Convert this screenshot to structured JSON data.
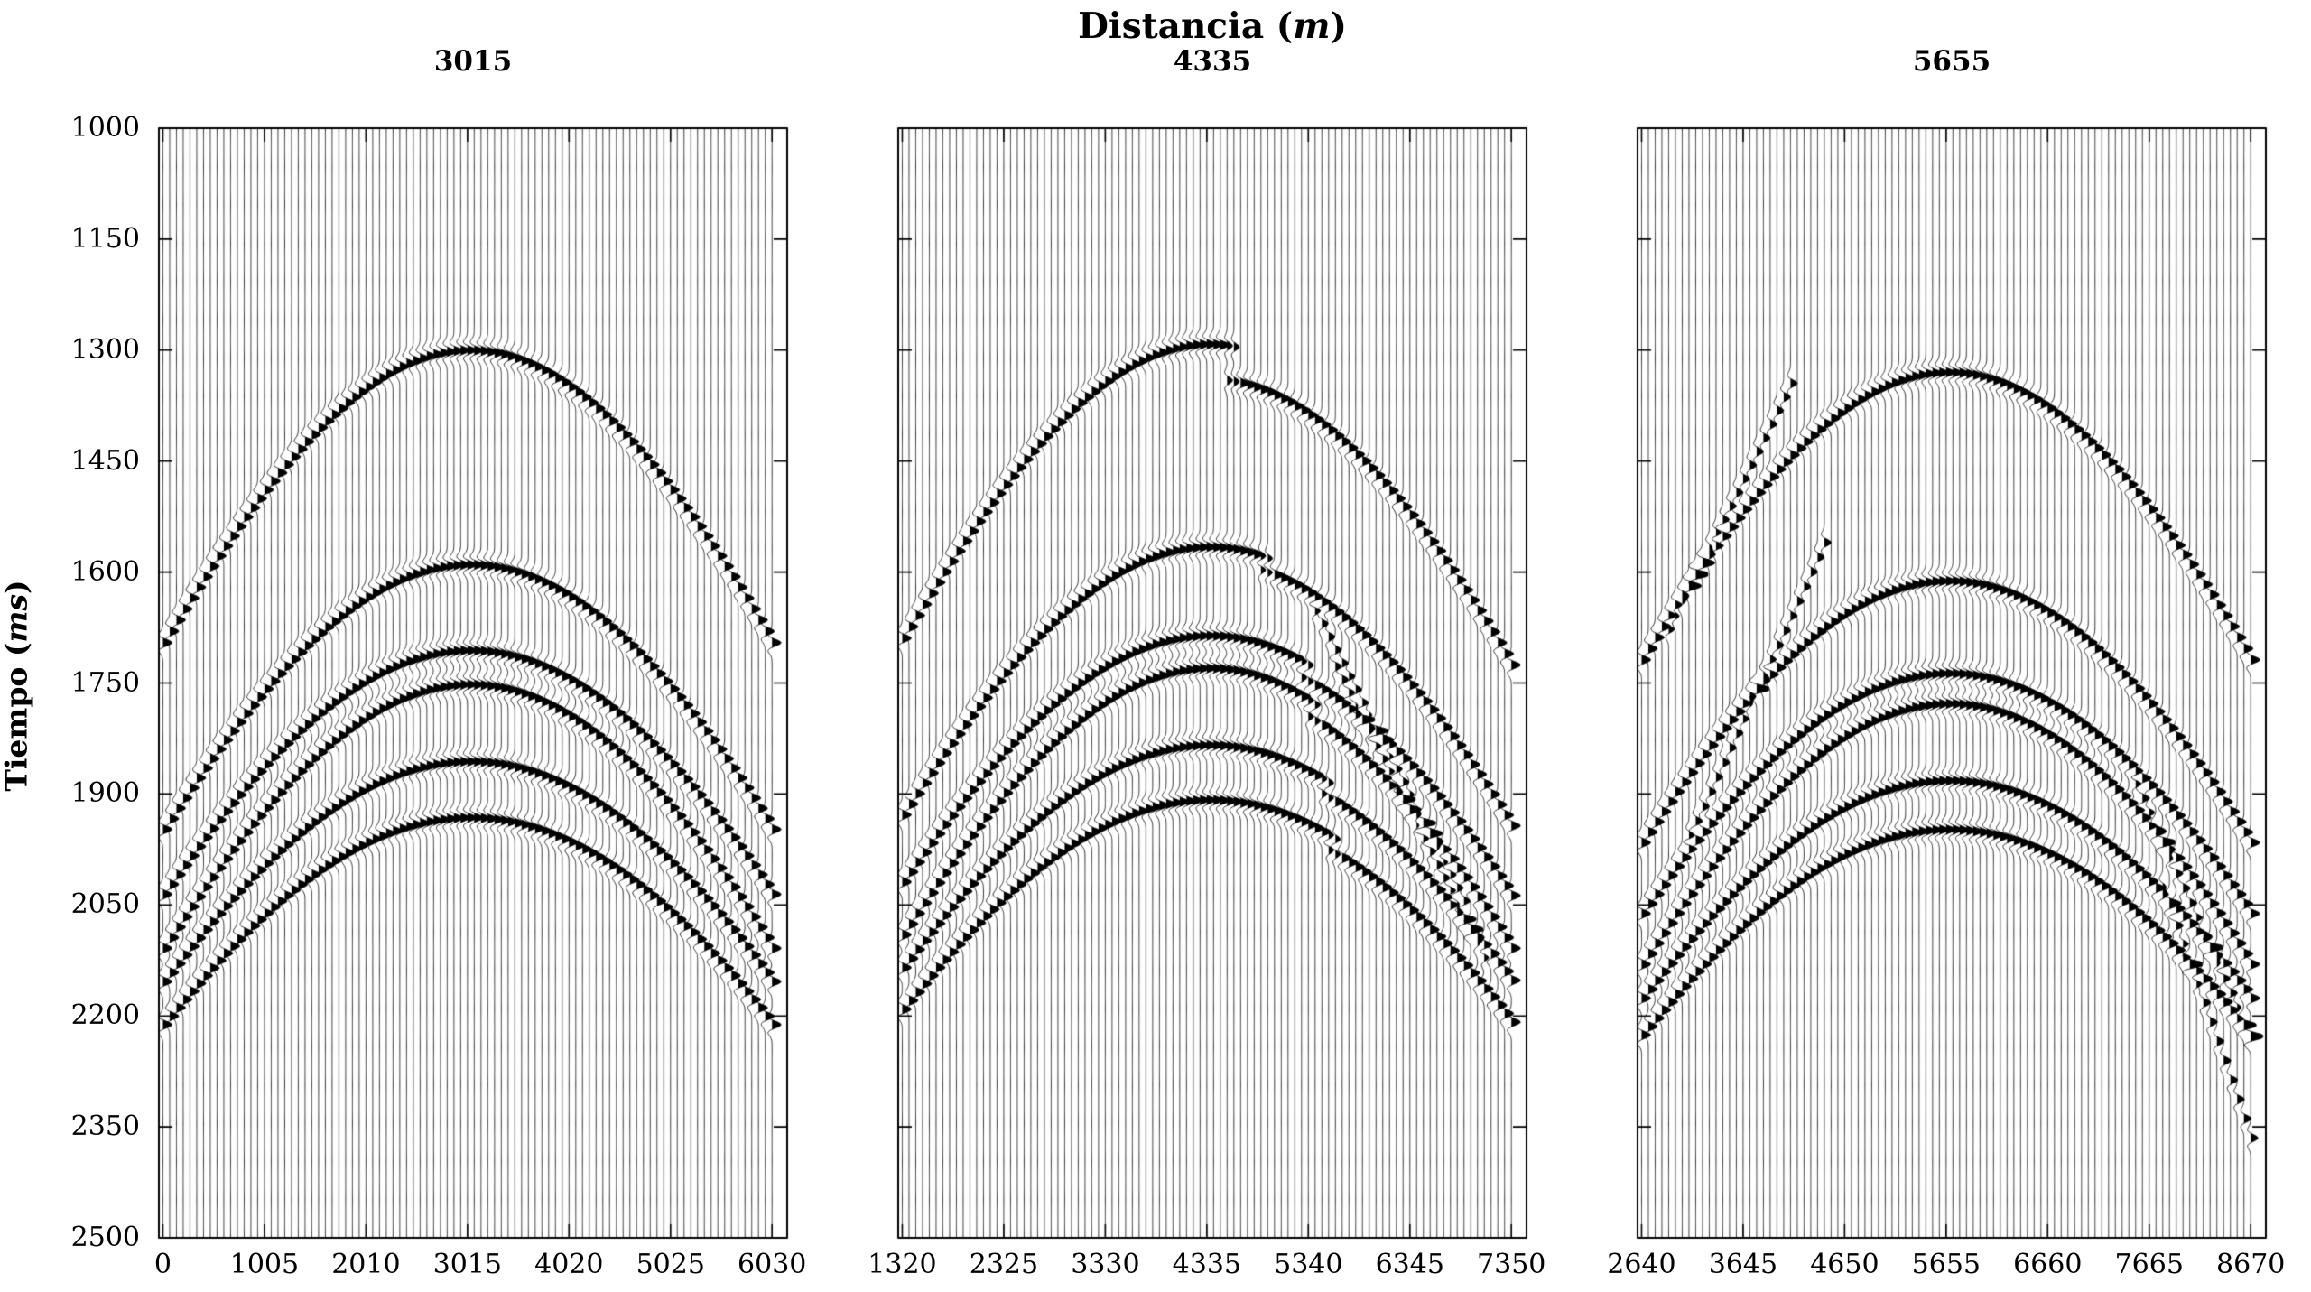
{
  "figure": {
    "title": {
      "pre": "Distancia (",
      "italic": "m",
      "post": ")"
    },
    "ylabel": {
      "pre": "Tiempo (",
      "italic": "ms",
      "post": ")"
    },
    "background": "#ffffff",
    "ink": "#000000"
  },
  "chart_data": {
    "type": "seismic-wiggle-shot-gathers",
    "title": "Distancia (m)",
    "ylabel": "Tiempo (ms)",
    "ylim": [
      1000,
      2500
    ],
    "yticks": [
      1000,
      1150,
      1300,
      1450,
      1600,
      1750,
      1900,
      2050,
      2200,
      2350,
      2500
    ],
    "trace_interval_m": 67,
    "wavelet_center_hz": 35,
    "polarity": "positive-fill-right-black",
    "panels": [
      {
        "label": "3015",
        "apex_m": 3015,
        "xlim": [
          0,
          6030
        ],
        "xticks": [
          0,
          1005,
          2010,
          3015,
          4020,
          5025,
          6030
        ],
        "events": [
          {
            "t0_ms": 1300,
            "vnmo_ms": 2770
          },
          {
            "t0_ms": 1590,
            "vnmo_ms": 2680
          },
          {
            "t0_ms": 1706,
            "vnmo_ms": 2715
          },
          {
            "t0_ms": 1752,
            "vnmo_ms": 2570
          },
          {
            "t0_ms": 1856,
            "vnmo_ms": 2760
          },
          {
            "t0_ms": 1932,
            "vnmo_ms": 2800
          }
        ]
      },
      {
        "label": "4335",
        "apex_m": 4335,
        "xlim": [
          1320,
          7350
        ],
        "xticks": [
          1320,
          2325,
          3330,
          4335,
          5340,
          6345,
          7350
        ],
        "events": [
          {
            "t0_ms": 1292,
            "vnmo_ms": 2770,
            "fault": {
              "break_m": 4580,
              "dt_ms": 47
            }
          },
          {
            "t0_ms": 1566,
            "vnmo_ms": 2680,
            "fault": {
              "break_m": 4900,
              "dt_ms": 18
            }
          },
          {
            "t0_ms": 1686,
            "vnmo_ms": 2715,
            "fault": {
              "break_m": 5300,
              "dt_ms": 22
            }
          },
          {
            "t0_ms": 1730,
            "vnmo_ms": 2570,
            "fault": {
              "break_m": 5350,
              "dt_ms": 22
            }
          },
          {
            "t0_ms": 1834,
            "vnmo_ms": 2760,
            "fault": {
              "break_m": 5500,
              "dt_ms": 20
            }
          },
          {
            "t0_ms": 1908,
            "vnmo_ms": 2800,
            "fault": {
              "break_m": 5600,
              "dt_ms": 20
            }
          }
        ],
        "linear_events": [
          {
            "from_m": 5400,
            "from_ms": 1650,
            "to_m": 6900,
            "to_ms": 2050,
            "amp": 0.7
          },
          {
            "from_m": 5600,
            "from_ms": 1725,
            "to_m": 7100,
            "to_ms": 2125,
            "amp": 0.7
          }
        ]
      },
      {
        "label": "5655",
        "apex_m": 5655,
        "xlim": [
          2640,
          8670
        ],
        "xticks": [
          2640,
          3645,
          4650,
          5655,
          6660,
          7665,
          8670
        ],
        "events": [
          {
            "t0_ms": 1330,
            "vnmo_ms": 2770
          },
          {
            "t0_ms": 1612,
            "vnmo_ms": 2680
          },
          {
            "t0_ms": 1737,
            "vnmo_ms": 2715
          },
          {
            "t0_ms": 1778,
            "vnmo_ms": 2570
          },
          {
            "t0_ms": 1882,
            "vnmo_ms": 2760
          },
          {
            "t0_ms": 1948,
            "vnmo_ms": 2800
          }
        ],
        "linear_events": [
          {
            "from_m": 2860,
            "from_ms": 1690,
            "to_m": 4150,
            "to_ms": 1335,
            "amp": 0.75
          },
          {
            "from_m": 3080,
            "from_ms": 1965,
            "to_m": 4500,
            "to_ms": 1545,
            "amp": 0.75
          },
          {
            "from_m": 7480,
            "from_ms": 1870,
            "to_m": 8670,
            "to_ms": 2230,
            "amp": 0.8
          },
          {
            "from_m": 7760,
            "from_ms": 2010,
            "to_m": 8670,
            "to_ms": 2365,
            "amp": 0.8
          }
        ]
      }
    ]
  }
}
